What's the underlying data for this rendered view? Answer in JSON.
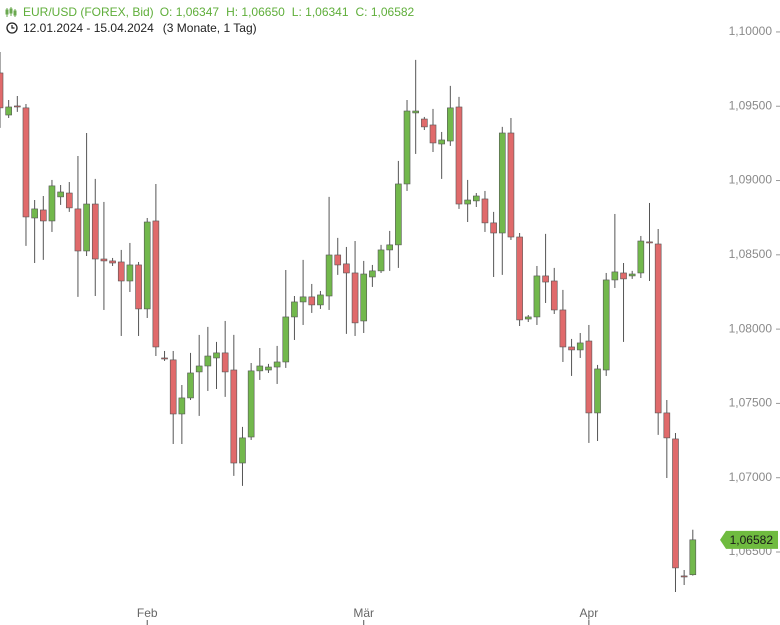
{
  "chart_data": {
    "type": "candlestick",
    "title": "EUR/USD (FOREX, Bid)",
    "header_values": [
      "O: 1,06347",
      "H: 1,06650",
      "L: 1,06341",
      "C: 1,06582"
    ],
    "period": "12.01.2024 - 15.04.2024",
    "period_note": "(3 Monate, 1 Tag)",
    "up_color": "#72b84c",
    "down_color": "#e06a6b",
    "open": [
      1.09724,
      1.09441,
      1.09502,
      1.09489,
      1.08748,
      1.08802,
      1.08728,
      1.0889,
      1.08916,
      1.08809,
      1.08526,
      1.08842,
      1.08472,
      1.08459,
      1.08452,
      1.08324,
      1.08432,
      1.08136,
      1.08728,
      1.07806,
      1.07793,
      1.07429,
      1.07537,
      1.07712,
      1.07752,
      1.07806,
      1.0784,
      1.07725,
      1.07099,
      1.07274,
      1.07719,
      1.07725,
      1.07745,
      1.07779,
      1.08082,
      1.08183,
      1.08217,
      1.08163,
      1.08223,
      1.08499,
      1.08439,
      1.08378,
      1.08055,
      1.08351,
      1.08392,
      1.08533,
      1.08567,
      1.08977,
      1.09455,
      1.09414,
      1.09374,
      1.09246,
      1.09266,
      1.09495,
      1.08842,
      1.08863,
      1.08876,
      1.08715,
      1.08647,
      1.0932,
      1.0862,
      1.08068,
      1.08082,
      1.08358,
      1.08324,
      1.08129,
      1.0788,
      1.0786,
      1.0792,
      1.07436,
      1.07725,
      1.08331,
      1.08378,
      1.08358,
      1.08378,
      1.08587,
      1.08573,
      1.07436,
      1.07261,
      1.06339,
      1.06347
    ],
    "high": [
      1.09865,
      1.09542,
      1.09569,
      1.09515,
      1.08869,
      1.08896,
      1.09004,
      1.0897,
      1.0899,
      1.09165,
      1.0932,
      1.09011,
      1.08856,
      1.08479,
      1.08533,
      1.0858,
      1.08452,
      1.08748,
      1.08977,
      1.07853,
      1.07853,
      1.07624,
      1.0784,
      1.07961,
      1.08015,
      1.07914,
      1.08055,
      1.07961,
      1.07342,
      1.07772,
      1.07873,
      1.07766,
      1.07887,
      1.08398,
      1.08223,
      1.08466,
      1.08304,
      1.08257,
      1.0889,
      1.08614,
      1.08553,
      1.08593,
      1.08459,
      1.08432,
      1.08567,
      1.08661,
      1.09132,
      1.09542,
      1.09812,
      1.09428,
      1.09482,
      1.09327,
      1.09637,
      1.09563,
      1.09004,
      1.08916,
      1.0893,
      1.08789,
      1.09361,
      1.09421,
      1.08647,
      1.08095,
      1.08425,
      1.08641,
      1.08412,
      1.08264,
      1.07934,
      1.07974,
      1.08028,
      1.07759,
      1.08378,
      1.08775,
      1.08445,
      1.08392,
      1.08627,
      1.08849,
      1.08674,
      1.07523,
      1.07301,
      1.06379,
      1.0665
    ],
    "low": [
      1.09354,
      1.09421,
      1.09462,
      1.0856,
      1.08445,
      1.08466,
      1.08654,
      1.08836,
      1.08789,
      1.08217,
      1.08492,
      1.08223,
      1.08129,
      1.08425,
      1.07954,
      1.0825,
      1.07954,
      1.08075,
      1.07819,
      1.07786,
      1.07227,
      1.07227,
      1.07523,
      1.07416,
      1.07584,
      1.07597,
      1.07544,
      1.07012,
      1.06945,
      1.07254,
      1.07658,
      1.07705,
      1.07631,
      1.07739,
      1.07927,
      1.08028,
      1.08109,
      1.08136,
      1.08129,
      1.08365,
      1.07968,
      1.07954,
      1.07974,
      1.08284,
      1.08378,
      1.08392,
      1.08412,
      1.0893,
      1.09179,
      1.0934,
      1.09192,
      1.09011,
      1.09233,
      1.08809,
      1.08721,
      1.08822,
      1.08654,
      1.08351,
      1.08365,
      1.086,
      1.08021,
      1.08048,
      1.08028,
      1.08176,
      1.08102,
      1.07779,
      1.07685,
      1.07806,
      1.07234,
      1.07247,
      1.07685,
      1.08277,
      1.07914,
      1.08338,
      1.08344,
      1.08324,
      1.07288,
      1.06998,
      1.06231,
      1.06278,
      1.06341
    ],
    "close": [
      1.09489,
      1.09495,
      1.09495,
      1.08755,
      1.08809,
      1.08728,
      1.08964,
      1.08923,
      1.08816,
      1.08526,
      1.08842,
      1.08472,
      1.08459,
      1.08445,
      1.08324,
      1.08432,
      1.08136,
      1.08721,
      1.0788,
      1.07799,
      1.07429,
      1.07537,
      1.07705,
      1.07752,
      1.07819,
      1.0784,
      1.07712,
      1.07099,
      1.07268,
      1.07719,
      1.07752,
      1.07745,
      1.07779,
      1.08082,
      1.08183,
      1.08217,
      1.08163,
      1.0823,
      1.08499,
      1.08432,
      1.08378,
      1.08042,
      1.08371,
      1.08392,
      1.08533,
      1.08567,
      1.08977,
      1.09468,
      1.09468,
      1.09361,
      1.09253,
      1.09273,
      1.09489,
      1.08842,
      1.08869,
      1.08896,
      1.08715,
      1.08647,
      1.0932,
      1.0862,
      1.08062,
      1.08082,
      1.08358,
      1.08317,
      1.08129,
      1.0788,
      1.0786,
      1.07907,
      1.07436,
      1.07732,
      1.08331,
      1.08385,
      1.08338,
      1.08371,
      1.08593,
      1.0858,
      1.07436,
      1.07268,
      1.06393,
      1.06332,
      1.06582
    ],
    "xlim": [
      0,
      83.14
    ],
    "xticks": [
      {
        "value": 17,
        "label": "Feb"
      },
      {
        "value": 42,
        "label": "Mär"
      },
      {
        "value": 68,
        "label": "Apr"
      }
    ],
    "ylim": [
      1.06177,
      1.10215
    ],
    "yticks": [
      {
        "value": 1.065,
        "label": "1,06500"
      },
      {
        "value": 1.07,
        "label": "1,07000"
      },
      {
        "value": 1.075,
        "label": "1,07500"
      },
      {
        "value": 1.08,
        "label": "1,08000"
      },
      {
        "value": 1.085,
        "label": "1,08500"
      },
      {
        "value": 1.09,
        "label": "1,09000"
      },
      {
        "value": 1.095,
        "label": "1,09500"
      },
      {
        "value": 1.1,
        "label": "1,10000"
      }
    ],
    "last_price": {
      "value": 1.06582,
      "label": "1,06582"
    }
  }
}
